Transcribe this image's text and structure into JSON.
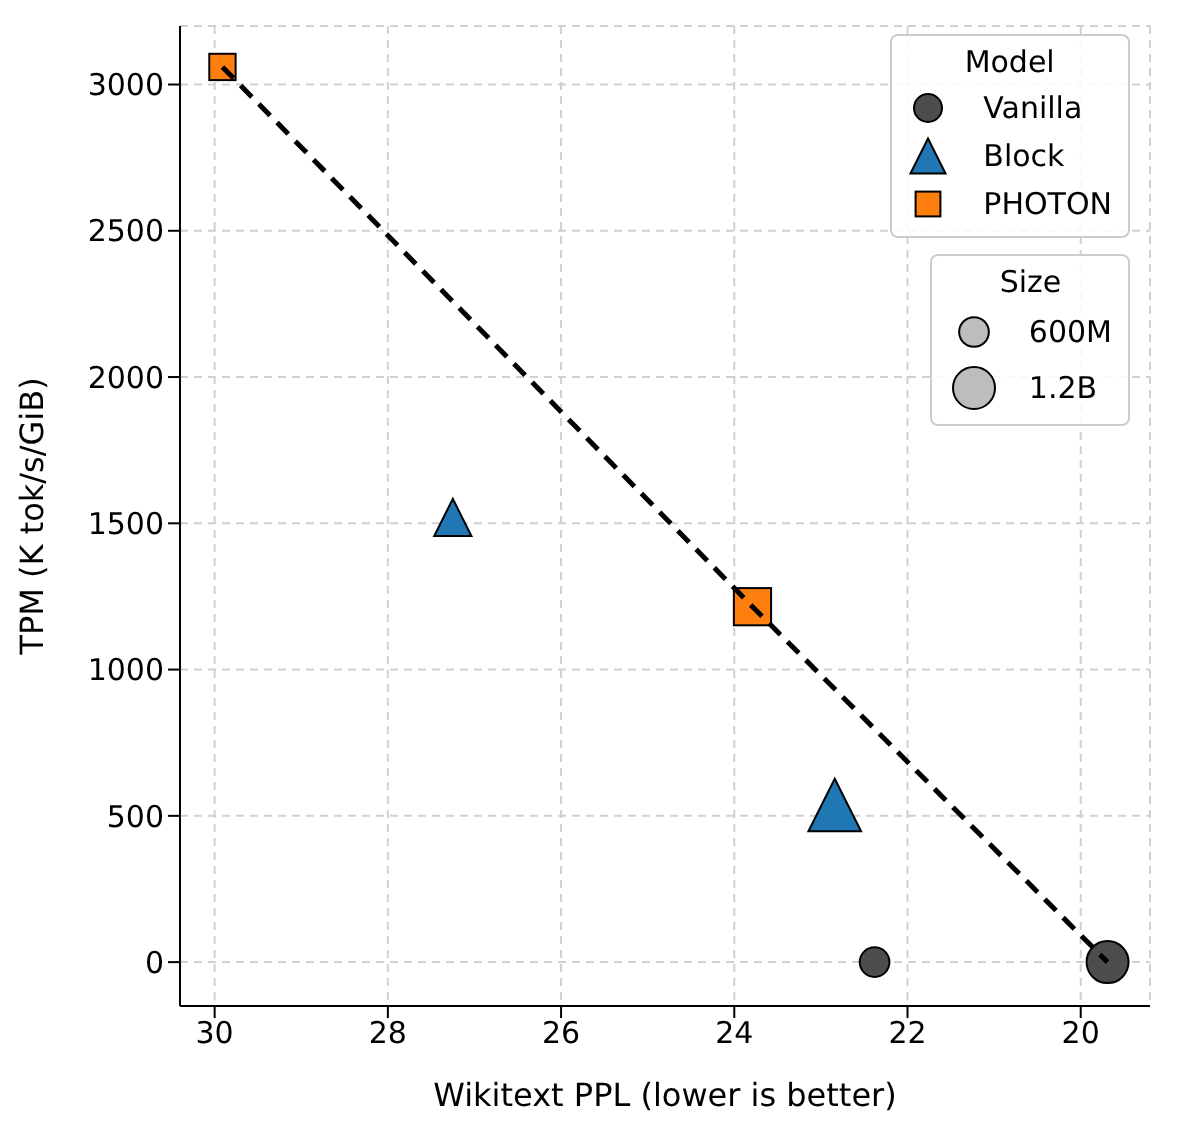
{
  "chart_data": {
    "type": "bubble",
    "xlabel": "Wikitext PPL (lower is better)",
    "ylabel": "TPM (K tok/s/GiB)",
    "legend_title": "Model",
    "legend": "top right",
    "grid": true,
    "xlim": [
      30.4,
      19.2
    ],
    "xticks": [
      30,
      28,
      26,
      24,
      22,
      20
    ],
    "ylim": [
      -150,
      3200
    ],
    "yticks": [
      0,
      500,
      1000,
      1500,
      2000,
      2500,
      3000
    ],
    "size_legend": [
      {
        "value": 0.6,
        "label": "600M"
      },
      {
        "value": 1.2,
        "label": "1.2B"
      }
    ],
    "annotations": [
      "Size"
    ],
    "series": [
      {
        "name": "Vanilla",
        "color": "#4d4d4d",
        "marker": "circle",
        "x": [
          22.38,
          19.69
        ],
        "values": [
          0,
          0
        ],
        "sizes": [
          0.6,
          1.2
        ]
      },
      {
        "name": "Block",
        "color": "#1f77b4",
        "marker": "triangle",
        "x": [
          27.25,
          22.84
        ],
        "values": [
          1520,
          537
        ],
        "sizes": [
          0.6,
          1.2
        ]
      },
      {
        "name": "PHOTON",
        "color": "#ff7f0e",
        "marker": "square",
        "x": [
          29.91,
          23.79
        ],
        "values": [
          3060,
          1215
        ],
        "sizes": [
          0.6,
          1.2
        ]
      },
      {
        "type": "line",
        "color": "#000000",
        "marker": "none",
        "line_style": "dashed",
        "x": [
          29.91,
          23.79,
          19.69
        ],
        "values": [
          3060,
          1215,
          0
        ]
      }
    ]
  }
}
